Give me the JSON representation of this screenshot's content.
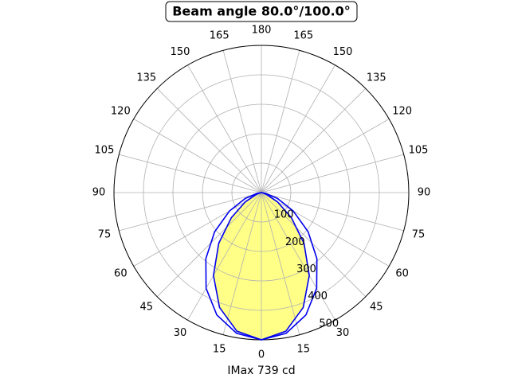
{
  "chart_data": {
    "type": "polar",
    "title": "Beam angle 80.0°/100.0°",
    "xlabel": "IMax 739 cd",
    "theta": [
      -90,
      -80,
      -70,
      -60,
      -50,
      -40,
      -30,
      -20,
      -10,
      0,
      10,
      20,
      30,
      40,
      50,
      60,
      70,
      80,
      90
    ],
    "series": [
      {
        "color": "#0000ee",
        "fill": "#ffff88",
        "values": [
          0,
          3,
          20,
          63,
          133,
          225,
          325,
          415,
          478,
          500,
          478,
          415,
          325,
          225,
          133,
          63,
          20,
          3,
          0
        ]
      },
      {
        "color": "#0000ee",
        "values": [
          0,
          15,
          58,
          125,
          207,
          293,
          375,
          442,
          485,
          500,
          485,
          442,
          375,
          293,
          207,
          125,
          58,
          15,
          0
        ]
      }
    ],
    "ylim": [
      0,
      500
    ],
    "yticks": [
      100,
      200,
      300,
      400,
      500
    ],
    "thetaticks": [
      0,
      15,
      30,
      45,
      60,
      75,
      90,
      105,
      120,
      135,
      150,
      165,
      180,
      {
        "value": 195,
        "label": "165"
      },
      {
        "value": 210,
        "label": "150"
      },
      {
        "value": 225,
        "label": "135"
      },
      {
        "value": 240,
        "label": "120"
      },
      {
        "value": 255,
        "label": "105"
      },
      {
        "value": 270,
        "label": "90"
      },
      {
        "value": 285,
        "label": "75"
      },
      {
        "value": 300,
        "label": "60"
      },
      {
        "value": 315,
        "label": "45"
      },
      {
        "value": 330,
        "label": "30"
      },
      {
        "value": 345,
        "label": "15"
      }
    ],
    "grid": true
  }
}
